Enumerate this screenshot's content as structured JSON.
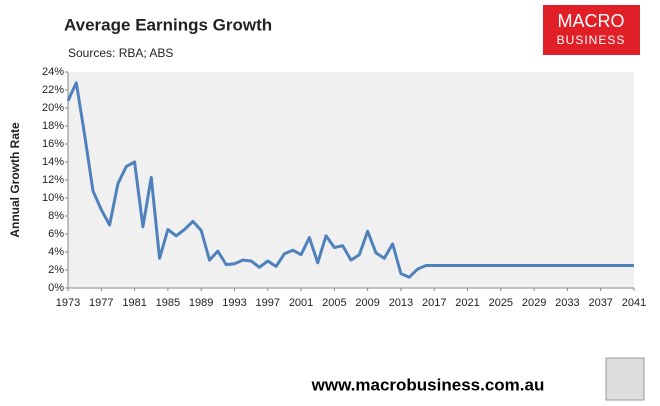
{
  "chart_data": {
    "type": "line",
    "title": "Average Earnings Growth",
    "subtitle": "Sources: RBA; ABS",
    "y_label": "Annual Growth Rate",
    "logo": [
      "MACRO",
      "BUSINESS"
    ],
    "footer": "www.macrobusiness.com.au",
    "color": "#4f81bd",
    "x": [
      1973,
      1974,
      1975,
      1976,
      1977,
      1978,
      1979,
      1980,
      1981,
      1982,
      1983,
      1984,
      1985,
      1986,
      1987,
      1988,
      1989,
      1990,
      1991,
      1992,
      1993,
      1994,
      1995,
      1996,
      1997,
      1998,
      1999,
      2000,
      2001,
      2002,
      2003,
      2004,
      2005,
      2006,
      2007,
      2008,
      2009,
      2010,
      2011,
      2012,
      2013,
      2014,
      2015,
      2016,
      2017,
      2018,
      2019,
      2020,
      2021,
      2022,
      2023,
      2024,
      2025,
      2026,
      2027,
      2028,
      2029,
      2030,
      2031,
      2032,
      2033,
      2034,
      2035,
      2036,
      2037,
      2038,
      2039,
      2040,
      2041
    ],
    "values": [
      20.8,
      22.8,
      17,
      10.8,
      8.7,
      7.0,
      11.6,
      13.5,
      14.0,
      6.8,
      12.3,
      3.3,
      6.5,
      5.8,
      6.5,
      7.4,
      6.4,
      3.1,
      4.1,
      2.6,
      2.7,
      3.1,
      3.0,
      2.3,
      3.0,
      2.4,
      3.8,
      4.2,
      3.7,
      5.6,
      2.8,
      5.8,
      4.5,
      4.7,
      3.1,
      3.7,
      6.3,
      3.9,
      3.3,
      4.9,
      1.6,
      1.2,
      2.1,
      2.5,
      2.5,
      2.5,
      2.5,
      2.5,
      2.5,
      2.5,
      2.5,
      2.5,
      2.5,
      2.5,
      2.5,
      2.5,
      2.5,
      2.5,
      2.5,
      2.5,
      2.5,
      2.5,
      2.5,
      2.5,
      2.5,
      2.5,
      2.5,
      2.5,
      2.5
    ],
    "xlim": [
      1973,
      2041
    ],
    "xticks": [
      1973,
      1977,
      1981,
      1985,
      1989,
      1993,
      1997,
      2001,
      2005,
      2009,
      2013,
      2017,
      2021,
      2025,
      2029,
      2033,
      2037,
      2041
    ],
    "ylim": [
      0,
      24
    ],
    "yticks": [
      {
        "value": 0,
        "label": "0%"
      },
      {
        "value": 2,
        "label": "2%"
      },
      {
        "value": 4,
        "label": "4%"
      },
      {
        "value": 6,
        "label": "6%"
      },
      {
        "value": 8,
        "label": "8%"
      },
      {
        "value": 10,
        "label": "10%"
      },
      {
        "value": 12,
        "label": "12%"
      },
      {
        "value": 14,
        "label": "14%"
      },
      {
        "value": 16,
        "label": "16%"
      },
      {
        "value": 18,
        "label": "18%"
      },
      {
        "value": 20,
        "label": "20%"
      },
      {
        "value": 22,
        "label": "22%"
      },
      {
        "value": 24,
        "label": "24%"
      }
    ]
  }
}
